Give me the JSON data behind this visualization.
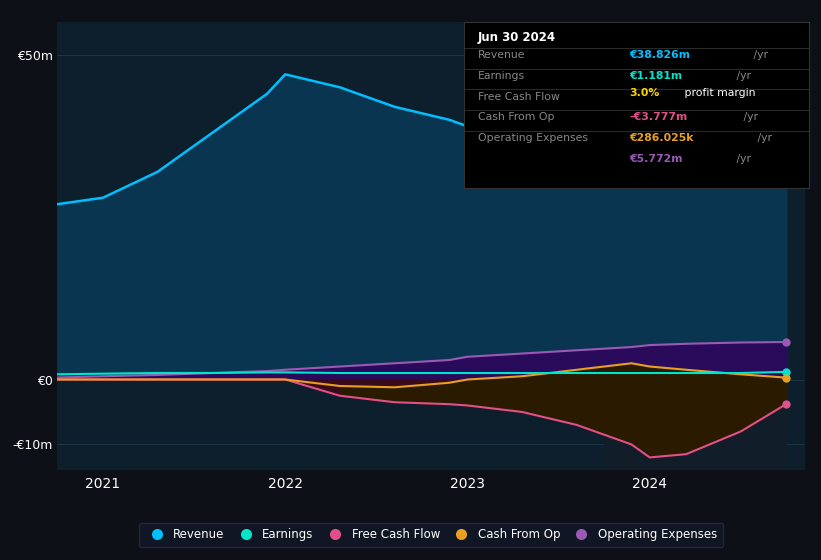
{
  "bg_color": "#0d1117",
  "plot_bg_color": "#0d1f2d",
  "title": "Jun 30 2024",
  "x_years": [
    2020.75,
    2021.0,
    2021.3,
    2021.6,
    2021.9,
    2022.0,
    2022.3,
    2022.6,
    2022.9,
    2023.0,
    2023.3,
    2023.6,
    2023.9,
    2024.0,
    2024.2,
    2024.5,
    2024.75
  ],
  "revenue": [
    27,
    28,
    32,
    38,
    44,
    47,
    45,
    42,
    40,
    39,
    38.5,
    38,
    37.5,
    37,
    36,
    35,
    38.826
  ],
  "earnings": [
    0.8,
    0.9,
    1.0,
    1.0,
    1.1,
    1.1,
    1.0,
    1.0,
    1.0,
    1.0,
    1.0,
    1.0,
    1.0,
    1.0,
    1.0,
    1.0,
    1.181
  ],
  "free_cash": [
    0.0,
    0.0,
    0.0,
    0.0,
    0.0,
    0.0,
    -2.5,
    -3.5,
    -3.8,
    -4.0,
    -5.0,
    -7.0,
    -10.0,
    -12.0,
    -11.5,
    -8.0,
    -3.777
  ],
  "cash_from_op": [
    0.0,
    0.0,
    0.0,
    0.0,
    0.0,
    0.0,
    -1.0,
    -1.2,
    -0.5,
    0.0,
    0.5,
    1.5,
    2.5,
    2.0,
    1.5,
    0.8,
    0.286
  ],
  "op_expenses": [
    0.3,
    0.5,
    0.7,
    1.0,
    1.3,
    1.5,
    2.0,
    2.5,
    3.0,
    3.5,
    4.0,
    4.5,
    5.0,
    5.3,
    5.5,
    5.7,
    5.772
  ],
  "revenue_color": "#00bfff",
  "earnings_color": "#00e5cc",
  "free_cash_color": "#e0508a",
  "cash_from_op_color": "#e8a020",
  "op_expenses_color": "#9b59b6",
  "revenue_fill": "#0a3550",
  "free_cash_fill": "#3a0a1a",
  "cash_from_op_fill": "#2a1a00",
  "op_expenses_fill": "#2a0a5a",
  "ylim": [
    -14,
    55
  ],
  "yticks": [
    -10,
    0,
    50
  ],
  "ytick_labels": [
    "-€10m",
    "€0",
    "€50m"
  ],
  "xticks": [
    2021,
    2022,
    2023,
    2024
  ],
  "xtick_labels": [
    "2021",
    "2022",
    "2023",
    "2024"
  ],
  "legend_entries": [
    "Revenue",
    "Earnings",
    "Free Cash Flow",
    "Cash From Op",
    "Operating Expenses"
  ],
  "legend_colors": [
    "#00bfff",
    "#00e5cc",
    "#e0508a",
    "#e8a020",
    "#9b59b6"
  ],
  "grid_color": "#1e3a4a",
  "highlight_x_start": 2023.75,
  "highlight_x_end": 2024.75,
  "highlight_color": "#111d28",
  "xlim_start": 2020.75,
  "xlim_end": 2024.85,
  "info_revenue_val": "€38.826m",
  "info_earnings_val": "€1.181m",
  "info_fcf_val": "-€3.777m",
  "info_cashop_val": "€286.025k",
  "info_opex_val": "€5.772m",
  "info_revenue_color": "#00bfff",
  "info_earnings_color": "#00e5cc",
  "info_fcf_color": "#e0508a",
  "info_cashop_color": "#e8a020",
  "info_opex_color": "#9b59b6",
  "info_pct_color": "#ffd700"
}
